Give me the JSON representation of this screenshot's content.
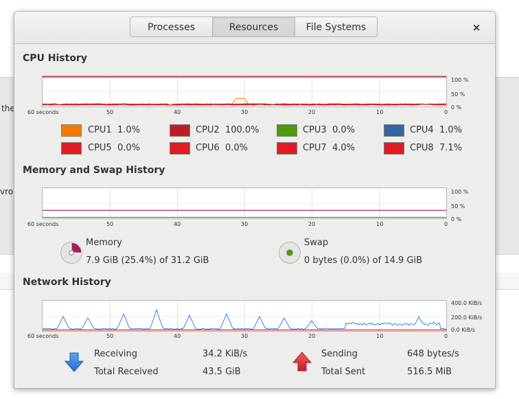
{
  "background": {
    "text_1": "the",
    "text_2": "vroi"
  },
  "header": {
    "tabs": [
      {
        "label": "Processes",
        "active": false
      },
      {
        "label": "Resources",
        "active": true
      },
      {
        "label": "File Systems",
        "active": false
      }
    ],
    "close_icon": "×"
  },
  "cpu": {
    "title": "CPU History",
    "y_ticks": [
      "100 %",
      "50 %",
      "0 %"
    ],
    "x_ticks": [
      "60 seconds",
      "50",
      "40",
      "30",
      "20",
      "10",
      "0"
    ],
    "cores": [
      {
        "name": "CPU1",
        "value": "1.0%",
        "color": "#f57900"
      },
      {
        "name": "CPU2",
        "value": "100.0%",
        "color": "#c01c28"
      },
      {
        "name": "CPU3",
        "value": "0.0%",
        "color": "#4e9a06"
      },
      {
        "name": "CPU4",
        "value": "1.0%",
        "color": "#3465a4"
      },
      {
        "name": "CPU5",
        "value": "0.0%",
        "color": "#e01b24"
      },
      {
        "name": "CPU6",
        "value": "0.0%",
        "color": "#e01b24"
      },
      {
        "name": "CPU7",
        "value": "4.0%",
        "color": "#e01b24"
      },
      {
        "name": "CPU8",
        "value": "7.1%",
        "color": "#e01b24"
      }
    ]
  },
  "memory": {
    "title": "Memory and Swap History",
    "y_ticks": [
      "100 %",
      "50 %",
      "0 %"
    ],
    "x_ticks": [
      "60 seconds",
      "50",
      "40",
      "30",
      "20",
      "10",
      "0"
    ],
    "memory_label": "Memory",
    "memory_value": "7.9 GiB (25.4%) of 31.2 GiB",
    "memory_fraction": 0.254,
    "memory_color": "#a51d5c",
    "swap_label": "Swap",
    "swap_value": "0 bytes (0.0%) of 14.9 GiB",
    "swap_fraction": 0.0,
    "swap_color": "#4e9a06"
  },
  "network": {
    "title": "Network History",
    "y_ticks": [
      "400.0 KiB/s",
      "200.0 KiB/s",
      "0.0 KiB/s"
    ],
    "x_ticks": [
      "60 seconds",
      "50",
      "40",
      "30",
      "20",
      "10",
      "0"
    ],
    "receiving_label": "Receiving",
    "receiving_value": "34.2 KiB/s",
    "total_received_label": "Total Received",
    "total_received_value": "43.5 GiB",
    "sending_label": "Sending",
    "sending_value": "648 bytes/s",
    "total_sent_label": "Total Sent",
    "total_sent_value": "516.5 MiB",
    "receive_color": "#3584e4",
    "send_color": "#e01b24"
  }
}
